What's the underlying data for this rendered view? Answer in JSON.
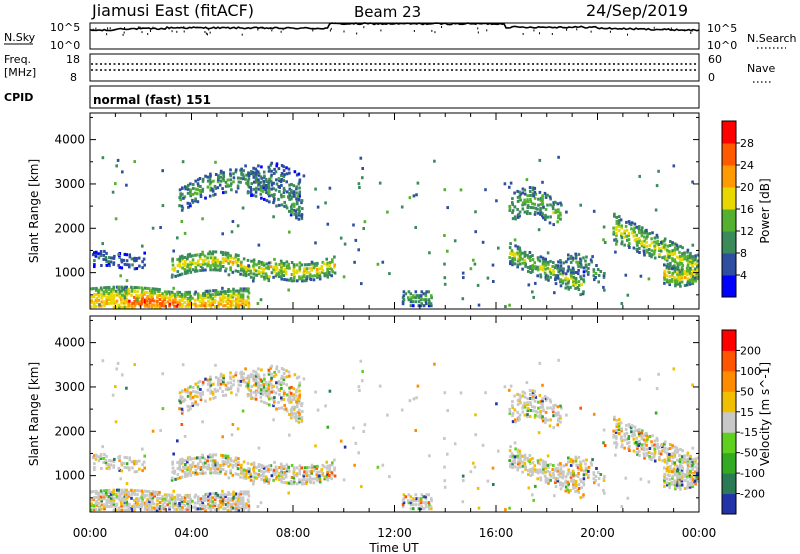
{
  "header": {
    "station": "Jiamusi East (fitACF)",
    "beam": "Beam 23",
    "date": "24/Sep/2019"
  },
  "noise_panel": {
    "left_label": "N.Sky",
    "right_label": "N.Search",
    "left_ticks": [
      "10^5",
      "10^0"
    ],
    "right_ticks": [
      "10^5",
      "10^0"
    ]
  },
  "freq_panel": {
    "left_label_1": "Freq.",
    "left_label_2": "[MHz]",
    "right_label": "Nave",
    "left_ticks": [
      "18",
      "8"
    ],
    "right_ticks": [
      "60",
      "0"
    ]
  },
  "cpid_panel": {
    "label": "CPID",
    "value": "normal (fast) 151"
  },
  "colors": {
    "power_scale": [
      "#0000ff",
      "#2e4fa0",
      "#3a8a5a",
      "#55b030",
      "#e8d800",
      "#ff9a00",
      "#ff5a00",
      "#ff0000"
    ],
    "velocity_scale": [
      "#2233aa",
      "#2a7a55",
      "#33aa22",
      "#60d020",
      "#c8c8c8",
      "#f0c000",
      "#ff8c00",
      "#ff5500",
      "#ff0000"
    ]
  },
  "chart_data": [
    {
      "type": "heatmap",
      "title": "",
      "ylabel": "Slant Range [km]",
      "xlabel": "",
      "xlim": [
        "00:00",
        "24:00"
      ],
      "ylim": [
        180,
        4600
      ],
      "y_ticks": [
        "1000",
        "2000",
        "3000",
        "4000"
      ],
      "colorbar_label": "Power [dB]",
      "colorbar_ticks": [
        "4",
        "8",
        "12",
        "16",
        "20",
        "24",
        "28"
      ],
      "x_ticks": [
        "00:00",
        "04:00",
        "08:00",
        "12:00",
        "16:00",
        "20:00",
        "00:00"
      ],
      "echo_regions": [
        {
          "t_start": 0.0,
          "t_end": 6.0,
          "range_start": 200,
          "range_end": 900,
          "peak_power": 28
        },
        {
          "t_start": 3.0,
          "t_end": 9.5,
          "range_start": 900,
          "range_end": 1500,
          "peak_power": 22
        },
        {
          "t_start": 3.5,
          "t_end": 8.2,
          "range_start": 2300,
          "range_end": 3400,
          "peak_power": 16
        },
        {
          "t_start": 12.3,
          "t_end": 13.4,
          "range_start": 200,
          "range_end": 650,
          "peak_power": 14
        },
        {
          "t_start": 16.5,
          "t_end": 19.5,
          "range_start": 500,
          "range_end": 1500,
          "peak_power": 20
        },
        {
          "t_start": 16.5,
          "t_end": 18.5,
          "range_start": 1900,
          "range_end": 2900,
          "peak_power": 18
        },
        {
          "t_start": 20.5,
          "t_end": 24.0,
          "range_start": 600,
          "range_end": 2200,
          "peak_power": 22
        }
      ]
    },
    {
      "type": "heatmap",
      "title": "",
      "ylabel": "Slant Range [km]",
      "xlabel": "Time UT",
      "xlim": [
        "00:00",
        "24:00"
      ],
      "ylim": [
        180,
        4600
      ],
      "y_ticks": [
        "1000",
        "2000",
        "3000",
        "4000"
      ],
      "colorbar_label": "Velocity [m s^-1]",
      "colorbar_ticks": [
        "200",
        "100",
        "50",
        "15",
        "-15",
        "-50",
        "-100",
        "-200"
      ],
      "x_ticks": [
        "00:00",
        "04:00",
        "08:00",
        "12:00",
        "16:00",
        "20:00",
        "00:00"
      ]
    }
  ]
}
